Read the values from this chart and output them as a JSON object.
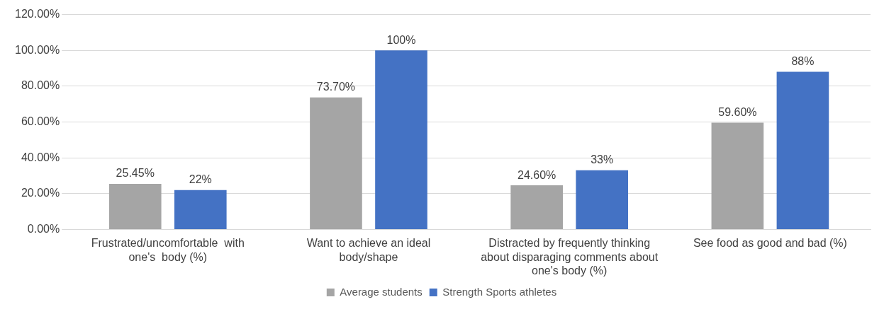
{
  "chart_data": {
    "type": "bar",
    "categories": [
      "Frustrated/uncomfortable  with one's  body (%)",
      "Want to achieve an ideal body/shape",
      "Distracted by frequently thinking about disparaging comments about one's body (%)",
      "See food as good and bad (%)"
    ],
    "series": [
      {
        "name": "Average students",
        "color": "#a5a5a5",
        "values": [
          25.45,
          73.7,
          24.6,
          59.6
        ],
        "value_labels": [
          "25.45%",
          "73.70%",
          "24.60%",
          "59.60%"
        ]
      },
      {
        "name": "Strength Sports athletes",
        "color": "#4472c4",
        "values": [
          22,
          100,
          33,
          88
        ],
        "value_labels": [
          "22%",
          "100%",
          "33%",
          "88%"
        ]
      }
    ],
    "ylim": [
      0,
      120
    ],
    "yticks": [
      {
        "value": 0,
        "label": "0.00%"
      },
      {
        "value": 20,
        "label": "20.00%"
      },
      {
        "value": 40,
        "label": "40.00%"
      },
      {
        "value": 60,
        "label": "60.00%"
      },
      {
        "value": 80,
        "label": "80.00%"
      },
      {
        "value": 100,
        "label": "100.00%"
      },
      {
        "value": 120,
        "label": "120.00%"
      }
    ],
    "grid": "y",
    "legend": "bottom"
  }
}
